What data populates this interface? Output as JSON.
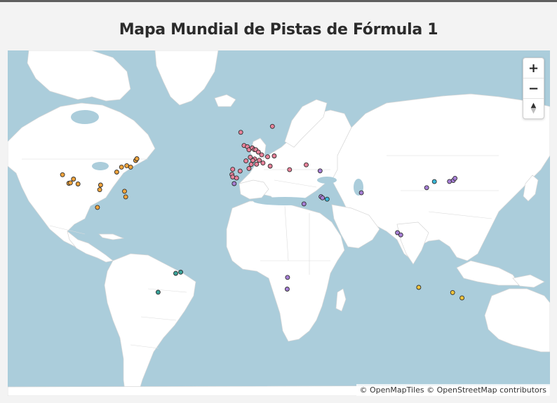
{
  "title": "Mapa Mundial de Pistas de Fórmula 1",
  "controls": {
    "zoom_in": "+",
    "zoom_out": "−",
    "compass_icon": "compass-north-icon"
  },
  "attribution": "© OpenMapTiles © OpenStreetMap contributors",
  "colors": {
    "water": "#abcddb",
    "land": "#ffffff",
    "europe": "#e8829a",
    "north_america": "#f0a43c",
    "asia": "#a77fd6",
    "south_america": "#3aa39a",
    "oceania": "#f0c43c",
    "teal": "#3ab8d8"
  },
  "tracks": [
    {
      "lon": -3.2,
      "lat": 57.2,
      "group": "europe"
    },
    {
      "lon": -1.0,
      "lat": 52.1,
      "group": "europe"
    },
    {
      "lon": 1.2,
      "lat": 51.6,
      "group": "europe"
    },
    {
      "lon": 2.3,
      "lat": 50.3,
      "group": "europe"
    },
    {
      "lon": 4.5,
      "lat": 51.1,
      "group": "europe"
    },
    {
      "lon": 5.9,
      "lat": 50.4,
      "group": "europe"
    },
    {
      "lon": 6.9,
      "lat": 50.3,
      "group": "europe"
    },
    {
      "lon": 8.6,
      "lat": 49.3,
      "group": "europe"
    },
    {
      "lon": 10.8,
      "lat": 48.1,
      "group": "europe"
    },
    {
      "lon": 6.1,
      "lat": 46.2,
      "group": "europe"
    },
    {
      "lon": 3.2,
      "lat": 47.0,
      "group": "europe"
    },
    {
      "lon": 0.3,
      "lat": 45.3,
      "group": "europe"
    },
    {
      "lon": 4.9,
      "lat": 45.5,
      "group": "europe"
    },
    {
      "lon": 3.8,
      "lat": 43.6,
      "group": "europe"
    },
    {
      "lon": 7.4,
      "lat": 43.7,
      "group": "europe"
    },
    {
      "lon": 9.2,
      "lat": 45.6,
      "group": "europe"
    },
    {
      "lon": 11.7,
      "lat": 44.3,
      "group": "europe"
    },
    {
      "lon": 14.8,
      "lat": 47.2,
      "group": "europe"
    },
    {
      "lon": 19.2,
      "lat": 47.6,
      "group": "europe"
    },
    {
      "lon": 16.5,
      "lat": 42.8,
      "group": "europe"
    },
    {
      "lon": 2.3,
      "lat": 41.6,
      "group": "europe"
    },
    {
      "lon": -3.6,
      "lat": 40.3,
      "group": "europe"
    },
    {
      "lon": -8.6,
      "lat": 41.2,
      "group": "europe"
    },
    {
      "lon": -9.1,
      "lat": 38.5,
      "group": "europe"
    },
    {
      "lon": -8.6,
      "lat": 37.2,
      "group": "europe"
    },
    {
      "lon": -6.0,
      "lat": 36.7,
      "group": "europe"
    },
    {
      "lon": 18.0,
      "lat": 59.3,
      "group": "europe"
    },
    {
      "lon": 29.5,
      "lat": 41.0,
      "group": "europe"
    },
    {
      "lon": 40.6,
      "lat": 43.4,
      "group": "europe"
    },
    {
      "lon": -7.6,
      "lat": 33.6,
      "group": "asia"
    },
    {
      "lon": 49.9,
      "lat": 40.4,
      "group": "asia"
    },
    {
      "lon": 39.1,
      "lat": 21.6,
      "group": "asia"
    },
    {
      "lon": 50.5,
      "lat": 26.0,
      "group": "asia"
    },
    {
      "lon": 51.5,
      "lat": 25.3,
      "group": "asia"
    },
    {
      "lon": 54.6,
      "lat": 24.5,
      "group": "teal"
    },
    {
      "lon": 77.5,
      "lat": 28.3,
      "group": "asia"
    },
    {
      "lon": 101.7,
      "lat": 2.8,
      "group": "asia"
    },
    {
      "lon": 103.9,
      "lat": 1.3,
      "group": "asia"
    },
    {
      "lon": 121.2,
      "lat": 31.3,
      "group": "asia"
    },
    {
      "lon": 126.4,
      "lat": 34.7,
      "group": "teal"
    },
    {
      "lon": 136.5,
      "lat": 34.8,
      "group": "asia"
    },
    {
      "lon": 139.0,
      "lat": 35.3,
      "group": "asia"
    },
    {
      "lon": 140.2,
      "lat": 36.5,
      "group": "asia"
    },
    {
      "lon": 28.1,
      "lat": -26.2,
      "group": "asia"
    },
    {
      "lon": 27.9,
      "lat": -33.0,
      "group": "asia"
    },
    {
      "lon": -122.5,
      "lat": 38.4,
      "group": "north_america"
    },
    {
      "lon": -118.2,
      "lat": 33.8,
      "group": "north_america"
    },
    {
      "lon": -117.2,
      "lat": 34.0,
      "group": "north_america"
    },
    {
      "lon": -115.1,
      "lat": 36.1,
      "group": "north_america"
    },
    {
      "lon": -112.1,
      "lat": 33.4,
      "group": "north_america"
    },
    {
      "lon": -97.6,
      "lat": 30.1,
      "group": "north_america"
    },
    {
      "lon": -97.0,
      "lat": 32.8,
      "group": "north_america"
    },
    {
      "lon": -86.2,
      "lat": 39.8,
      "group": "north_america"
    },
    {
      "lon": -83.0,
      "lat": 42.3,
      "group": "north_america"
    },
    {
      "lon": -79.5,
      "lat": 43.0,
      "group": "north_america"
    },
    {
      "lon": -76.9,
      "lat": 42.3,
      "group": "north_america"
    },
    {
      "lon": -73.5,
      "lat": 45.5,
      "group": "north_america"
    },
    {
      "lon": -72.7,
      "lat": 46.3,
      "group": "north_america"
    },
    {
      "lon": -80.2,
      "lat": 25.9,
      "group": "north_america"
    },
    {
      "lon": -81.0,
      "lat": 29.2,
      "group": "north_america"
    },
    {
      "lon": -99.1,
      "lat": 19.4,
      "group": "north_america"
    },
    {
      "lon": -43.4,
      "lat": -23.0,
      "group": "south_america"
    },
    {
      "lon": -46.7,
      "lat": -23.7,
      "group": "south_america"
    },
    {
      "lon": -58.5,
      "lat": -34.7,
      "group": "south_america"
    },
    {
      "lon": 115.9,
      "lat": -32.0,
      "group": "oceania"
    },
    {
      "lon": 144.9,
      "lat": -37.8,
      "group": "oceania"
    },
    {
      "lon": 138.6,
      "lat": -34.9,
      "group": "oceania"
    }
  ]
}
